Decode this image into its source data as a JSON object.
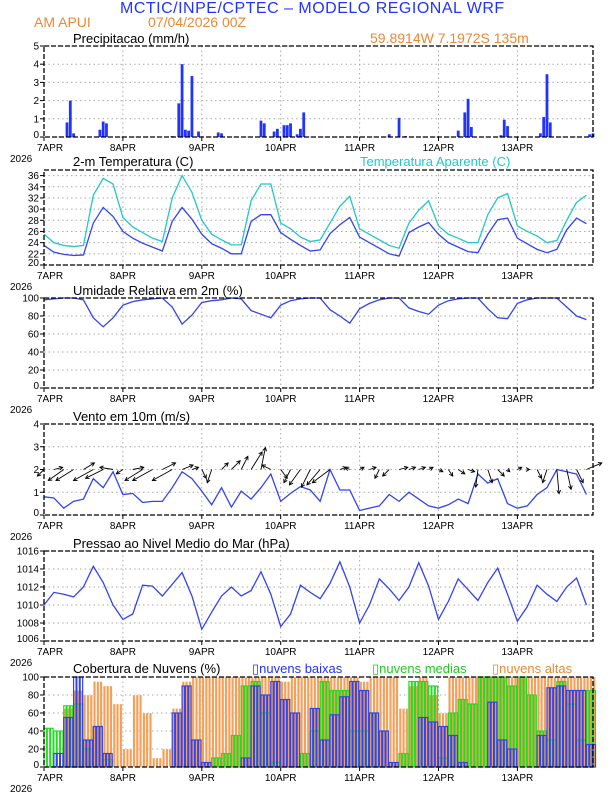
{
  "header": {
    "title": "MCTIC/INPE/CPTEC – MODELO REGIONAL WRF",
    "location": "AM APUI",
    "run": "07/04/2026 00Z",
    "coords": "59.8914W 7.1972S 135m"
  },
  "colors": {
    "title": "#2233ff",
    "orange": "#ee8833",
    "line": "#3344ee",
    "cyan": "#22c8c8",
    "green": "#22dd22",
    "high": "#f5a05a",
    "bars": "#2233ff"
  },
  "chart_data": [
    {
      "type": "bar",
      "title": "Precipitacao (mm/h)",
      "ylim": [
        0,
        5
      ],
      "yticks": [
        "0",
        "1",
        "2",
        "3",
        "4",
        "5"
      ],
      "xticks": [
        "7APR",
        "8APR",
        "9APR",
        "10APR",
        "11APR",
        "12APR",
        "13APR"
      ],
      "year_label": "2026",
      "x_unit": "hour since 07APR2026 00Z",
      "grid": true,
      "points": [
        [
          7,
          0.8
        ],
        [
          8,
          2.0
        ],
        [
          9,
          0.2
        ],
        [
          17,
          0.4
        ],
        [
          18,
          0.85
        ],
        [
          19,
          0.75
        ],
        [
          39,
          0.05
        ],
        [
          41,
          1.85
        ],
        [
          42,
          4.0
        ],
        [
          43,
          0.4
        ],
        [
          44,
          0.35
        ],
        [
          45,
          3.35
        ],
        [
          47,
          0.3
        ],
        [
          53,
          0.25
        ],
        [
          54,
          0.2
        ],
        [
          66,
          0.9
        ],
        [
          67,
          0.75
        ],
        [
          70,
          0.3
        ],
        [
          71,
          0.45
        ],
        [
          73,
          0.65
        ],
        [
          74,
          0.65
        ],
        [
          75,
          0.75
        ],
        [
          77,
          0.15
        ],
        [
          78,
          0.45
        ],
        [
          79,
          1.35
        ],
        [
          105,
          0.15
        ],
        [
          108,
          1.05
        ],
        [
          110,
          0.05
        ],
        [
          126,
          0.35
        ],
        [
          128,
          1.35
        ],
        [
          129,
          2.1
        ],
        [
          130,
          0.55
        ],
        [
          139,
          0.1
        ],
        [
          140,
          0.95
        ],
        [
          141,
          0.6
        ],
        [
          151,
          0.2
        ],
        [
          152,
          1.1
        ],
        [
          153,
          3.45
        ],
        [
          154,
          0.8
        ],
        [
          166,
          0.15
        ],
        [
          167,
          0.2
        ]
      ]
    },
    {
      "type": "line",
      "title": "2-m Temperatura (C)",
      "ylim": [
        20,
        37
      ],
      "yticks": [
        "20",
        "22",
        "24",
        "26",
        "28",
        "30",
        "32",
        "34",
        "36"
      ],
      "x_start": "07APR2026 00Z",
      "step_hours": 3,
      "grid": true,
      "series": [
        {
          "name": "2-m Temperatura (C)",
          "values": [
            23.5,
            22.3,
            21.9,
            21.7,
            21.8,
            27.5,
            30.3,
            28.7,
            26,
            24.8,
            23.9,
            23.2,
            22.5,
            27.8,
            30.3,
            28.2,
            25.5,
            23.8,
            23.0,
            22.0,
            22.0,
            27.8,
            29.0,
            29.0,
            25.8,
            24.6,
            23.5,
            22.5,
            22.7,
            25.6,
            27.2,
            28.5,
            25,
            24,
            23,
            22,
            21.6,
            25.8,
            26.8,
            27.6,
            25.5,
            24,
            23.2,
            22.4,
            22.2,
            25.5,
            28.1,
            28.4,
            24.8,
            23.8,
            22.8,
            22.2,
            22.8,
            26.3,
            28.4,
            27.4
          ]
        },
        {
          "name": "Temperatura Aparente (C)",
          "values": [
            25.5,
            24.0,
            23.5,
            23.3,
            23.5,
            32.5,
            35.5,
            34.5,
            28.5,
            26.8,
            25.8,
            24.8,
            24.2,
            32,
            36,
            33,
            28,
            25.5,
            24.5,
            23.6,
            23.6,
            31.5,
            34.5,
            34.5,
            27.5,
            26.5,
            25,
            24.2,
            24.5,
            27.5,
            30.5,
            32.3,
            26.5,
            25.5,
            24.5,
            23.5,
            23,
            27.5,
            29.8,
            31.5,
            27,
            25.5,
            24.8,
            24,
            24,
            29,
            32,
            32.8,
            27,
            26,
            25.2,
            24,
            24.4,
            28,
            31.2,
            32.5
          ]
        }
      ]
    },
    {
      "type": "line",
      "title": "Umidade Relativa em 2m (%)",
      "ylim": [
        0,
        100
      ],
      "yticks": [
        "0",
        "20",
        "40",
        "60",
        "80",
        "100"
      ],
      "x_start": "07APR2026 00Z",
      "step_hours": 3,
      "grid": true,
      "values": [
        98,
        99,
        100,
        100,
        98,
        78,
        68,
        78,
        92,
        96,
        98,
        99,
        100,
        90,
        71,
        81,
        95,
        97,
        98,
        100,
        99,
        86,
        82,
        78,
        92,
        97,
        99,
        100,
        100,
        87,
        80,
        72,
        88,
        94,
        98,
        100,
        100,
        89,
        85,
        82,
        92,
        97,
        99,
        100,
        100,
        88,
        78,
        77,
        94,
        98,
        100,
        100,
        100,
        90,
        80,
        76
      ]
    },
    {
      "type": "line",
      "title": "Vento em 10m (m/s)",
      "ylim": [
        0,
        4
      ],
      "yticks": [
        "0",
        "1",
        "2",
        "3",
        "4"
      ],
      "x_start": "07APR2026 00Z",
      "step_hours": 3,
      "grid": true,
      "values": [
        0.8,
        0.75,
        0.3,
        0.6,
        0.7,
        1.6,
        1.2,
        1.9,
        0.9,
        0.95,
        0.55,
        0.6,
        0.6,
        1.2,
        1.9,
        1.6,
        1.05,
        0.45,
        1.2,
        0.35,
        1.05,
        0.7,
        1.2,
        1.8,
        0.6,
        0.95,
        1.25,
        1.1,
        0.6,
        2.0,
        1.1,
        1.1,
        0.2,
        0.3,
        0.4,
        0.9,
        0.6,
        1.0,
        0.7,
        0.4,
        0.3,
        0.45,
        0.7,
        0.5,
        1.8,
        1.4,
        1.6,
        0.5,
        0.3,
        0.4,
        0.9,
        1.2,
        2.0,
        1.9,
        1.8,
        0.9
      ],
      "vectors_u": [
        -0.3,
        0.4,
        -0.7,
        -0.8,
        0.5,
        -0.9,
        -0.8,
        -0.6,
        -0.3,
        0.5,
        -0.8,
        -0.9,
        0.6,
        -0.9,
        0.5,
        0.3,
        0.2,
        -0.2,
        0.3,
        0.4,
        0.3,
        0.5,
        0.2,
        -0.4,
        0.3,
        -0.3,
        -0.5,
        -0.4,
        -0.6,
        -0.8,
        0.3,
        -0.2,
        0.2,
        0.3,
        -0.2,
        -0.3,
        0.4,
        0.3,
        0.3,
        0.2,
        0.2,
        0.2,
        0.3,
        0.3,
        -0.1,
        0.2,
        0.3,
        0.1,
        0.2,
        0.1,
        0.2,
        -0.2,
        0.1,
        0.2,
        0.3,
        0.7
      ],
      "vectors_v": [
        -0.3,
        0.1,
        -0.5,
        -0.5,
        0.3,
        -0.5,
        -0.4,
        0.1,
        -0.2,
        0.1,
        -0.5,
        -0.5,
        0.3,
        -0.5,
        0.2,
        0.1,
        -0.4,
        -0.6,
        0.3,
        0.4,
        0.6,
        0.8,
        1.0,
        0.2,
        -0.4,
        -0.6,
        -0.7,
        -0.8,
        -0.7,
        -0.6,
        0.1,
        0.1,
        0.1,
        0.1,
        -0.4,
        -0.3,
        0.1,
        0.1,
        0.1,
        0.1,
        -0.1,
        -0.3,
        -0.2,
        -0.1,
        -0.8,
        -0.6,
        -0.3,
        -0.1,
        0.1,
        0.0,
        -0.4,
        -0.6,
        -1.1,
        -0.9,
        -0.6,
        0.3
      ]
    },
    {
      "type": "line",
      "title": "Pressao ao Nivel Medio do Mar (hPa)",
      "ylim": [
        1006,
        1016
      ],
      "yticks": [
        "1006",
        "1008",
        "1010",
        "1012",
        "1014",
        "1016"
      ],
      "x_start": "07APR2026 00Z",
      "step_hours": 3,
      "grid": true,
      "values": [
        1010,
        1011.4,
        1011.2,
        1010.9,
        1012,
        1014.3,
        1012.5,
        1010,
        1008.4,
        1009,
        1012.2,
        1012.1,
        1011,
        1012.3,
        1013.6,
        1011,
        1007.3,
        1009.2,
        1011,
        1012,
        1011,
        1011.6,
        1013.7,
        1011.2,
        1007.6,
        1009,
        1012.2,
        1011.4,
        1010.7,
        1012.4,
        1014.8,
        1012,
        1008,
        1010,
        1012.9,
        1011.8,
        1010.5,
        1012,
        1014.7,
        1012.1,
        1008.4,
        1010.4,
        1012.9,
        1011.7,
        1010.5,
        1012.5,
        1014.1,
        1011.2,
        1008.2,
        1009.8,
        1012.2,
        1011.2,
        1010.4,
        1012.0,
        1013,
        1010
      ]
    },
    {
      "type": "bar",
      "title": "Cobertura de Nuvens (%)",
      "ylim": [
        0,
        100
      ],
      "yticks": [
        "0",
        "20",
        "40",
        "60",
        "80",
        "100"
      ],
      "x_start": "07APR2026 00Z",
      "step_hours": 3,
      "grid": true,
      "legend": "top",
      "series": [
        {
          "name": "nuvens altas",
          "values": [
            0,
            0,
            65,
            85,
            80,
            95,
            90,
            70,
            20,
            80,
            60,
            10,
            20,
            65,
            95,
            100,
            100,
            100,
            100,
            100,
            100,
            100,
            100,
            100,
            95,
            100,
            100,
            100,
            100,
            100,
            100,
            100,
            95,
            100,
            100,
            100,
            65,
            90,
            100,
            80,
            60,
            100,
            100,
            100,
            100,
            100,
            100,
            100,
            100,
            100,
            100,
            100,
            100,
            100,
            100,
            100
          ]
        },
        {
          "name": "nuvens medias",
          "values": [
            43,
            40,
            68,
            70,
            20,
            45,
            8,
            0,
            0,
            0,
            0,
            0,
            0,
            0,
            0,
            0,
            0,
            10,
            15,
            35,
            90,
            95,
            60,
            5,
            0,
            0,
            15,
            40,
            95,
            85,
            85,
            40,
            40,
            60,
            40,
            0,
            15,
            95,
            95,
            90,
            10,
            60,
            75,
            70,
            100,
            100,
            100,
            90,
            100,
            80,
            40,
            30,
            95,
            70,
            30,
            85
          ]
        },
        {
          "name": "nuvens baixas",
          "values": [
            0,
            15,
            55,
            100,
            30,
            45,
            15,
            0,
            0,
            0,
            0,
            0,
            0,
            60,
            90,
            30,
            5,
            0,
            0,
            0,
            10,
            90,
            80,
            95,
            75,
            60,
            0,
            65,
            30,
            58,
            78,
            95,
            85,
            60,
            40,
            5,
            0,
            0,
            55,
            50,
            45,
            35,
            5,
            0,
            0,
            72,
            30,
            20,
            0,
            0,
            35,
            88,
            90,
            85,
            85,
            25
          ]
        }
      ]
    }
  ]
}
